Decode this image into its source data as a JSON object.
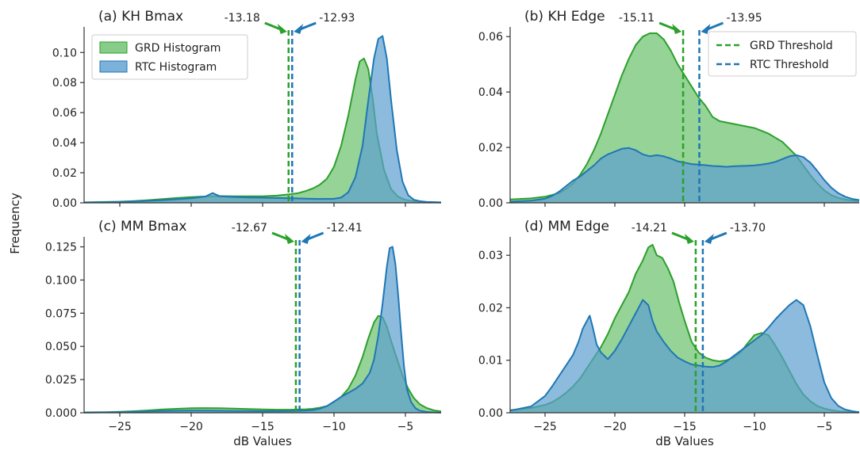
{
  "figure": {
    "ylabel": "Frequency"
  },
  "colors": {
    "grd": "#2ca02c",
    "rtc": "#1f77b4",
    "grd_fill": "#69c16b",
    "rtc_fill": "#5b9ed0",
    "axis": "#333333"
  },
  "legends": {
    "hist": [
      "GRD Histogram",
      "RTC Histogram"
    ],
    "thresh": [
      "GRD Threshold",
      "RTC Threshold"
    ]
  },
  "chart_data": [
    {
      "type": "area",
      "title": "(a) KH Bmax",
      "xlabel": "",
      "xlim": [
        -27.5,
        -2.5
      ],
      "ylim": [
        0,
        0.117
      ],
      "xticks": [
        -25,
        -20,
        -15,
        -10,
        -5
      ],
      "xtick_labels": [
        "",
        "",
        "",
        "",
        ""
      ],
      "yticks": [
        0,
        0.02,
        0.04,
        0.06,
        0.08,
        0.1
      ],
      "ytick_labels": [
        "0.00",
        "0.02",
        "0.04",
        "0.06",
        "0.08",
        "0.10"
      ],
      "legend": "hist",
      "thresholds": {
        "grd": -13.18,
        "rtc": -12.93,
        "grd_label": "-13.18",
        "rtc_label": "-12.93"
      },
      "series": [
        {
          "name": "GRD Histogram",
          "x": [
            -27.5,
            -26,
            -25,
            -24,
            -23,
            -22,
            -21,
            -20,
            -19,
            -18,
            -17,
            -16,
            -15,
            -14,
            -13,
            -12.5,
            -12,
            -11.5,
            -11,
            -10.5,
            -10,
            -9.5,
            -9,
            -8.5,
            -8.2,
            -7.9,
            -7.6,
            -7.3,
            -7,
            -6.5,
            -6,
            -5.5,
            -5,
            -4.5,
            -4,
            -3.5,
            -2.5
          ],
          "y": [
            0.0003,
            0.0006,
            0.0008,
            0.0012,
            0.0018,
            0.0025,
            0.0032,
            0.0038,
            0.0042,
            0.0045,
            0.0044,
            0.0043,
            0.0044,
            0.0048,
            0.0058,
            0.0065,
            0.0078,
            0.0095,
            0.012,
            0.016,
            0.024,
            0.038,
            0.058,
            0.082,
            0.094,
            0.096,
            0.089,
            0.07,
            0.046,
            0.022,
            0.009,
            0.004,
            0.002,
            0.0012,
            0.0007,
            0.0004,
            0.0002
          ]
        },
        {
          "name": "RTC Histogram",
          "x": [
            -27.5,
            -26,
            -25,
            -24,
            -23,
            -22,
            -21,
            -20,
            -19,
            -18.5,
            -18,
            -17,
            -16,
            -15,
            -14,
            -13,
            -12,
            -11,
            -10,
            -9.5,
            -9,
            -8.5,
            -8,
            -7.6,
            -7.2,
            -6.9,
            -6.6,
            -6.3,
            -6,
            -5.6,
            -5.2,
            -4.8,
            -4.4,
            -4,
            -3.5,
            -2.5
          ],
          "y": [
            0.0002,
            0.0004,
            0.0006,
            0.0009,
            0.0013,
            0.0018,
            0.0024,
            0.003,
            0.0042,
            0.0065,
            0.0044,
            0.0039,
            0.0036,
            0.0034,
            0.0032,
            0.003,
            0.0028,
            0.0026,
            0.0027,
            0.0035,
            0.007,
            0.017,
            0.038,
            0.068,
            0.096,
            0.109,
            0.111,
            0.096,
            0.068,
            0.035,
            0.014,
            0.005,
            0.002,
            0.0011,
            0.0006,
            0.0003
          ]
        }
      ]
    },
    {
      "type": "area",
      "title": "(b) KH Edge",
      "xlabel": "",
      "xlim": [
        -27.5,
        -2.5
      ],
      "ylim": [
        0,
        0.0635
      ],
      "xticks": [
        -25,
        -20,
        -15,
        -10,
        -5
      ],
      "xtick_labels": [
        "",
        "",
        "",
        "",
        ""
      ],
      "yticks": [
        0,
        0.02,
        0.04,
        0.06
      ],
      "ytick_labels": [
        "0.00",
        "0.02",
        "0.04",
        "0.06"
      ],
      "legend": "thresh",
      "thresholds": {
        "grd": -15.11,
        "rtc": -13.95,
        "grd_label": "-15.11",
        "rtc_label": "-13.95"
      },
      "series": [
        {
          "name": "GRD Histogram",
          "x": [
            -27.5,
            -26,
            -25,
            -24,
            -23.5,
            -23,
            -22.5,
            -22,
            -21.5,
            -21,
            -20.5,
            -20,
            -19.5,
            -19,
            -18.5,
            -18,
            -17.5,
            -17,
            -16.5,
            -16,
            -15.5,
            -15,
            -14.5,
            -14,
            -13.5,
            -13,
            -12.5,
            -12,
            -11.5,
            -11,
            -10.5,
            -10,
            -9.5,
            -9,
            -8.5,
            -8,
            -7.5,
            -7,
            -6.5,
            -6,
            -5.5,
            -5,
            -4.5,
            -4,
            -3.5,
            -3,
            -2.5
          ],
          "y": [
            0.0012,
            0.0016,
            0.0022,
            0.0035,
            0.005,
            0.007,
            0.01,
            0.014,
            0.019,
            0.025,
            0.032,
            0.039,
            0.046,
            0.052,
            0.057,
            0.06,
            0.0612,
            0.0612,
            0.059,
            0.055,
            0.05,
            0.046,
            0.042,
            0.038,
            0.035,
            0.031,
            0.0295,
            0.029,
            0.0285,
            0.028,
            0.0275,
            0.027,
            0.026,
            0.025,
            0.0235,
            0.022,
            0.0195,
            0.017,
            0.0135,
            0.01,
            0.007,
            0.0045,
            0.0028,
            0.0018,
            0.0012,
            0.0008,
            0.0006
          ]
        },
        {
          "name": "RTC Histogram",
          "x": [
            -27.5,
            -26,
            -25,
            -24.5,
            -24,
            -23.5,
            -23,
            -22.5,
            -22,
            -21.5,
            -21,
            -20.5,
            -20,
            -19.5,
            -19,
            -18.5,
            -18,
            -17.5,
            -17,
            -16.5,
            -16,
            -15.5,
            -15,
            -14.5,
            -14,
            -13.5,
            -13,
            -12.5,
            -12,
            -11.5,
            -11,
            -10.5,
            -10,
            -9.5,
            -9,
            -8.5,
            -8,
            -7.5,
            -7,
            -6.5,
            -6,
            -5.5,
            -5,
            -4.5,
            -4,
            -3.5,
            -3,
            -2.5
          ],
          "y": [
            0.0004,
            0.0008,
            0.0015,
            0.0025,
            0.004,
            0.006,
            0.008,
            0.0095,
            0.0115,
            0.0135,
            0.016,
            0.0175,
            0.0185,
            0.0195,
            0.0198,
            0.019,
            0.0175,
            0.0168,
            0.0172,
            0.0168,
            0.016,
            0.015,
            0.0145,
            0.014,
            0.0138,
            0.0136,
            0.0133,
            0.0132,
            0.013,
            0.0132,
            0.0133,
            0.0134,
            0.0135,
            0.0138,
            0.0142,
            0.0148,
            0.0158,
            0.0168,
            0.0172,
            0.0165,
            0.0145,
            0.0115,
            0.0082,
            0.0055,
            0.0035,
            0.0022,
            0.0014,
            0.001
          ]
        }
      ]
    },
    {
      "type": "area",
      "title": "(c) MM Bmax",
      "xlabel": "dB Values",
      "xlim": [
        -27.5,
        -2.5
      ],
      "ylim": [
        0,
        0.1325
      ],
      "xticks": [
        -25,
        -20,
        -15,
        -10,
        -5
      ],
      "xtick_labels": [
        "−25",
        "−20",
        "−15",
        "−10",
        "−5"
      ],
      "yticks": [
        0,
        0.025,
        0.05,
        0.075,
        0.1,
        0.125
      ],
      "ytick_labels": [
        "0.000",
        "0.025",
        "0.050",
        "0.075",
        "0.100",
        "0.125"
      ],
      "legend": "",
      "thresholds": {
        "grd": -12.67,
        "rtc": -12.41,
        "grd_label": "-12.67",
        "rtc_label": "-12.41"
      },
      "series": [
        {
          "name": "GRD Histogram",
          "x": [
            -27.5,
            -26,
            -25,
            -24,
            -23,
            -22,
            -21,
            -20,
            -19,
            -18,
            -17,
            -16,
            -15,
            -14,
            -13,
            -12,
            -11.5,
            -11,
            -10.5,
            -10,
            -9.5,
            -9,
            -8.5,
            -8,
            -7.6,
            -7.2,
            -6.9,
            -6.6,
            -6.3,
            -6,
            -5.6,
            -5.2,
            -4.8,
            -4.4,
            -4,
            -3.5,
            -3,
            -2.5
          ],
          "y": [
            0.0003,
            0.0005,
            0.0008,
            0.0012,
            0.0018,
            0.0025,
            0.003,
            0.0034,
            0.0035,
            0.0034,
            0.0031,
            0.0028,
            0.0025,
            0.0023,
            0.0023,
            0.0026,
            0.003,
            0.0038,
            0.005,
            0.008,
            0.012,
            0.018,
            0.028,
            0.042,
            0.056,
            0.068,
            0.073,
            0.072,
            0.065,
            0.054,
            0.041,
            0.028,
            0.018,
            0.011,
            0.0065,
            0.0035,
            0.0018,
            0.001
          ]
        },
        {
          "name": "RTC Histogram",
          "x": [
            -27.5,
            -26,
            -25,
            -24,
            -23,
            -22,
            -21,
            -20,
            -19,
            -18,
            -17,
            -16,
            -15,
            -14,
            -13,
            -12,
            -11.5,
            -11,
            -10.5,
            -10,
            -9.5,
            -9,
            -8.5,
            -8,
            -7.5,
            -7.2,
            -6.9,
            -6.6,
            -6.3,
            -6.1,
            -5.9,
            -5.7,
            -5.5,
            -5.3,
            -5.1,
            -4.9,
            -4.6,
            -4.3,
            -4,
            -3.5,
            -3,
            -2.5
          ],
          "y": [
            0.0002,
            0.0003,
            0.0005,
            0.0007,
            0.001,
            0.0013,
            0.0015,
            0.0016,
            0.0016,
            0.0015,
            0.0014,
            0.0013,
            0.0012,
            0.0012,
            0.0013,
            0.0016,
            0.002,
            0.003,
            0.005,
            0.0085,
            0.012,
            0.015,
            0.018,
            0.022,
            0.03,
            0.04,
            0.058,
            0.082,
            0.11,
            0.124,
            0.125,
            0.112,
            0.088,
            0.06,
            0.035,
            0.018,
            0.008,
            0.0035,
            0.0016,
            0.0006,
            0.0003,
            0.0002
          ]
        }
      ]
    },
    {
      "type": "area",
      "title": "(d) MM Edge",
      "xlabel": "dB Values",
      "xlim": [
        -27.5,
        -2.5
      ],
      "ylim": [
        0,
        0.0335
      ],
      "xticks": [
        -25,
        -20,
        -15,
        -10,
        -5
      ],
      "xtick_labels": [
        "−25",
        "−20",
        "−15",
        "−10",
        "−5"
      ],
      "yticks": [
        0,
        0.01,
        0.02,
        0.03
      ],
      "ytick_labels": [
        "0.00",
        "0.01",
        "0.02",
        "0.03"
      ],
      "legend": "",
      "thresholds": {
        "grd": -14.21,
        "rtc": -13.7,
        "grd_label": "-14.21",
        "rtc_label": "-13.70"
      },
      "series": [
        {
          "name": "GRD Histogram",
          "x": [
            -27.5,
            -26,
            -25,
            -24.5,
            -24,
            -23.5,
            -23,
            -22.5,
            -22,
            -21.5,
            -21,
            -20.5,
            -20,
            -19.5,
            -19,
            -18.5,
            -18,
            -17.6,
            -17.3,
            -17,
            -16.6,
            -16.2,
            -15.8,
            -15.4,
            -15,
            -14.5,
            -14,
            -13.5,
            -13,
            -12.5,
            -12,
            -11.5,
            -11,
            -10.5,
            -10,
            -9.5,
            -9,
            -8.5,
            -8,
            -7.5,
            -7,
            -6.5,
            -6,
            -5.5,
            -5,
            -4.5,
            -4,
            -3.5,
            -3,
            -2.5
          ],
          "y": [
            0.0005,
            0.0009,
            0.0015,
            0.002,
            0.0028,
            0.0038,
            0.005,
            0.0065,
            0.0085,
            0.0105,
            0.0125,
            0.015,
            0.018,
            0.0205,
            0.023,
            0.0265,
            0.029,
            0.0315,
            0.032,
            0.03,
            0.0295,
            0.0275,
            0.025,
            0.021,
            0.0175,
            0.0135,
            0.0115,
            0.0105,
            0.01,
            0.0098,
            0.01,
            0.0105,
            0.0115,
            0.0132,
            0.0148,
            0.0152,
            0.0148,
            0.0128,
            0.0105,
            0.008,
            0.0055,
            0.0035,
            0.0022,
            0.0013,
            0.0008,
            0.0005,
            0.0003,
            0.0002,
            0.0001,
            0.0001
          ]
        },
        {
          "name": "RTC Histogram",
          "x": [
            -27.5,
            -26,
            -25.5,
            -25,
            -24.5,
            -24,
            -23.5,
            -23,
            -22.6,
            -22.3,
            -22,
            -21.8,
            -21.6,
            -21.3,
            -21,
            -20.5,
            -20,
            -19.5,
            -19,
            -18.5,
            -18,
            -17.6,
            -17.3,
            -17,
            -16.5,
            -16,
            -15.5,
            -15,
            -14.5,
            -14,
            -13.5,
            -13,
            -12.5,
            -12,
            -11.5,
            -11,
            -10.5,
            -10,
            -9.5,
            -9,
            -8.5,
            -8,
            -7.5,
            -7,
            -6.5,
            -6,
            -5.5,
            -5,
            -4.5,
            -4,
            -3.5,
            -3,
            -2.5
          ],
          "y": [
            0.0004,
            0.0012,
            0.0022,
            0.0032,
            0.005,
            0.007,
            0.009,
            0.011,
            0.0135,
            0.016,
            0.0175,
            0.0185,
            0.0165,
            0.013,
            0.0115,
            0.0102,
            0.0118,
            0.014,
            0.0165,
            0.019,
            0.0215,
            0.0205,
            0.0175,
            0.0155,
            0.0135,
            0.0118,
            0.0105,
            0.0098,
            0.0092,
            0.009,
            0.0088,
            0.0087,
            0.009,
            0.0098,
            0.0108,
            0.0118,
            0.0128,
            0.0138,
            0.0148,
            0.0162,
            0.0178,
            0.0192,
            0.0205,
            0.0215,
            0.0205,
            0.0165,
            0.011,
            0.0058,
            0.0028,
            0.0013,
            0.0006,
            0.0003,
            0.0001
          ]
        }
      ]
    }
  ]
}
